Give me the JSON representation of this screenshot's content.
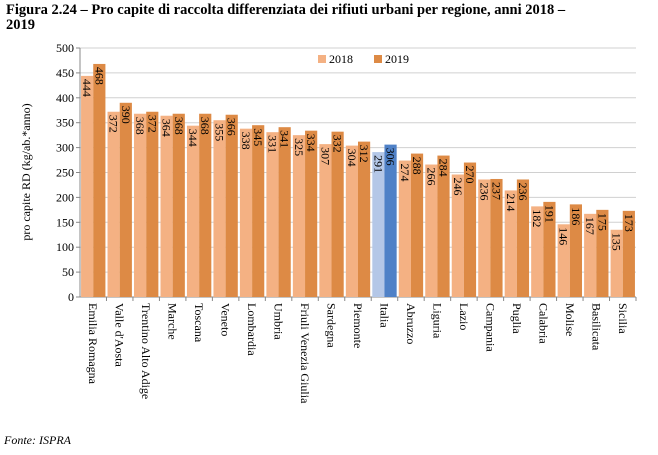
{
  "chart_data": {
    "type": "bar",
    "title": "Figura 2.24 – Pro capite di raccolta differenziata dei rifiuti urbani per regione, anni 2018 – 2019",
    "y_label": "pro capite RD (kg/ab.*anno)",
    "source": "Fonte: ISPRA",
    "categories": [
      "Emilia Romagna",
      "Valle d'Aosta",
      "Trentino Alto Adige",
      "Marche",
      "Toscana",
      "Veneto",
      "Lombardia",
      "Umbria",
      "Friuli Venezia Giulia",
      "Sardegna",
      "Piemonte",
      "Italia",
      "Abruzzo",
      "Liguria",
      "Lazio",
      "Campania",
      "Puglia",
      "Calabria",
      "Molise",
      "Basilicata",
      "Sicilia"
    ],
    "series": [
      {
        "name": "2018",
        "color": "#f4b183",
        "colors": [
          "#f4b183",
          "#f4b183",
          "#f4b183",
          "#f4b183",
          "#f4b183",
          "#f4b183",
          "#f4b183",
          "#f4b183",
          "#f4b183",
          "#f4b183",
          "#f4b183",
          "#b4c7e7",
          "#f4b183",
          "#f4b183",
          "#f4b183",
          "#f4b183",
          "#f4b183",
          "#f4b183",
          "#f4b183",
          "#f4b183",
          "#f4b183"
        ],
        "values": [
          444,
          372,
          368,
          364,
          344,
          355,
          338,
          331,
          325,
          307,
          304,
          291,
          274,
          266,
          246,
          236,
          214,
          182,
          146,
          167,
          135
        ]
      },
      {
        "name": "2019",
        "color": "#dd8a45",
        "colors": [
          "#dd8a45",
          "#dd8a45",
          "#dd8a45",
          "#dd8a45",
          "#dd8a45",
          "#dd8a45",
          "#dd8a45",
          "#dd8a45",
          "#dd8a45",
          "#dd8a45",
          "#dd8a45",
          "#4f81c7",
          "#dd8a45",
          "#dd8a45",
          "#dd8a45",
          "#dd8a45",
          "#dd8a45",
          "#dd8a45",
          "#dd8a45",
          "#dd8a45",
          "#dd8a45"
        ],
        "values": [
          468,
          390,
          372,
          368,
          368,
          366,
          345,
          341,
          334,
          332,
          312,
          306,
          288,
          284,
          270,
          237,
          236,
          191,
          186,
          175,
          173
        ]
      }
    ],
    "ylim": [
      0,
      500
    ],
    "yticks": [
      0,
      50,
      100,
      150,
      200,
      250,
      300,
      350,
      400,
      450,
      500
    ],
    "grid": true,
    "legend": "top"
  }
}
